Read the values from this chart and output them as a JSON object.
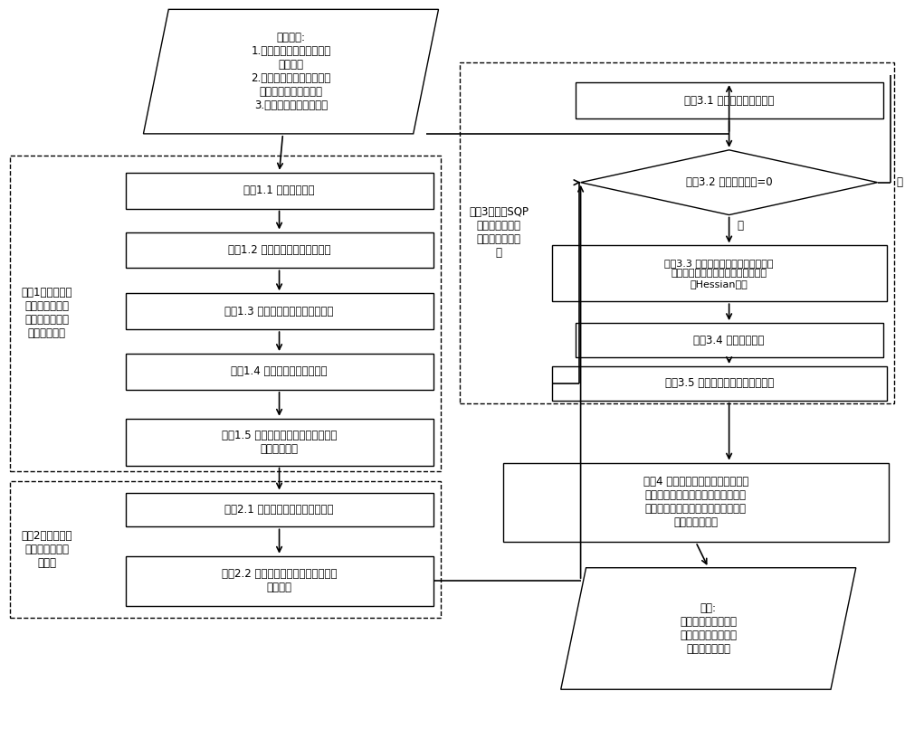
{
  "bg_color": "#ffffff",
  "box_color": "#ffffff",
  "box_edge": "#000000",
  "arrow_color": "#000000",
  "text_color": "#000000",
  "font_size": 8.5,
  "input_para_text": "输入参数:\n1.待填充哑元的版图和均匀\n网格边长\n2.填充哑元的约束条件（哑\n元宽度、面积、间距）\n3.初始总填充量搜索步长",
  "step1_label": "步骤1：版图提取\n并建立以综合目\n标为优化目标的\n哑元填充问题",
  "step1_1": "步骤1.1 划分版图区域",
  "step1_2": "步骤1.2 计算每个网格的初始密度",
  "step1_3": "步骤1.3 计算每个网格的可填充区域",
  "step1_4": "步骤1.4 划分可填充区域的类型",
  "step1_5": "步骤1.5 构建以综合目标为优化目标的\n哑元填充问题",
  "step2_label": "步骤2：确定用于\n序列二次规划的\n初始点",
  "step2_1": "步骤2.1 计算每个网格内初始填充量",
  "step2_2": "步骤2.2 计算每个网格内各种类型的初\n始填充量",
  "step3_label": "步骤3：应用SQP\n方法，进一步优\n化哑元填充的结\n果",
  "step3_1": "步骤3.1 将约束并入优化目标",
  "step3_2": "步骤3.2 最优解处梯度=0",
  "step3_3": "步骤3.3 计算目标函数以及在当前最优\n解处求目标函数对各变量的梯度以及\n其Hessian矩阵",
  "step3_4": "步骤3.4 计算优化方向",
  "step3_5": "步骤3.5 选取优化步长并更新最优解",
  "step4": "步骤4 确定所有哑元位置，按照每个\n网格内每种类型可填充区域的矩形面\n积进行排序，依次进行填充，直到达\n到规定的填充量",
  "output_text": "输出:\n哑元填充后的版图文\n件，其中包含所有哑\n元的大小及位置",
  "yes_label": "是",
  "no_label": "否"
}
